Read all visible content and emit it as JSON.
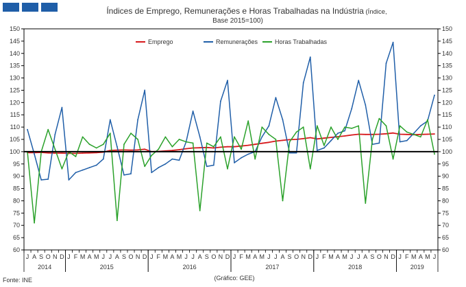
{
  "header": {
    "title_main": "Índices de Emprego,  Remunerações e Horas Trabalhadas na Indústria",
    "title_small": " (Índice,",
    "title_line2": "Base 2015=100)"
  },
  "footer": {
    "source": "Fonte: INE",
    "credit": "(Gráfico: GEE)"
  },
  "colors": {
    "emprego": "#d7191c",
    "remuneracoes": "#1f5ea8",
    "horas": "#2aa12a",
    "baseline": "#000000",
    "logo": "#1f5ea8"
  },
  "chart_data": {
    "type": "line",
    "ylim": [
      60,
      150
    ],
    "yticks": [
      60,
      65,
      70,
      75,
      80,
      85,
      90,
      95,
      100,
      105,
      110,
      115,
      120,
      125,
      130,
      135,
      140,
      145,
      150
    ],
    "reference_line": 100,
    "grid": false,
    "legend": "top-center",
    "month_labels": [
      "J",
      "A",
      "S",
      "O",
      "N",
      "D",
      "J",
      "F",
      "M",
      "A",
      "M",
      "J",
      "J",
      "A",
      "S",
      "O",
      "N",
      "D",
      "J",
      "F",
      "M",
      "A",
      "M",
      "J",
      "J",
      "A",
      "S",
      "O",
      "N",
      "D",
      "J",
      "F",
      "M",
      "A",
      "M",
      "J",
      "J",
      "A",
      "S",
      "O",
      "N",
      "D",
      "J",
      "F",
      "M",
      "A",
      "M",
      "J",
      "J",
      "A",
      "S",
      "O",
      "N",
      "D",
      "J",
      "F",
      "M",
      "A",
      "M",
      "J"
    ],
    "years": [
      {
        "label": "2014",
        "start": 0,
        "count": 6
      },
      {
        "label": "2015",
        "start": 6,
        "count": 12
      },
      {
        "label": "2016",
        "start": 18,
        "count": 12
      },
      {
        "label": "2017",
        "start": 30,
        "count": 12
      },
      {
        "label": "2018",
        "start": 42,
        "count": 12
      },
      {
        "label": "2019",
        "start": 54,
        "count": 6
      }
    ],
    "series": [
      {
        "name": "Emprego",
        "key": "emprego",
        "values": [
          99.6,
          99.6,
          99.7,
          99.5,
          99.4,
          99.4,
          99.3,
          99.3,
          99.4,
          99.5,
          99.6,
          99.8,
          100.5,
          100.6,
          100.7,
          100.6,
          100.7,
          101.0,
          100.0,
          100.1,
          100.3,
          100.5,
          100.8,
          101.2,
          101.5,
          101.6,
          101.7,
          101.5,
          101.8,
          102.0,
          102.0,
          102.3,
          102.6,
          103.0,
          103.4,
          103.8,
          104.3,
          104.6,
          104.9,
          105.0,
          105.3,
          105.7,
          105.2,
          105.5,
          105.8,
          106.1,
          106.4,
          106.8,
          107.1,
          107.0,
          107.0,
          107.1,
          107.3,
          107.6,
          107.1,
          107.0,
          106.9,
          107.0,
          107.1,
          107.2
        ]
      },
      {
        "name": "Remunerações",
        "key": "remuneracoes",
        "values": [
          109,
          99,
          88.5,
          88.8,
          107,
          118,
          88.5,
          91.5,
          92.5,
          93.5,
          94.5,
          97,
          113,
          102,
          90.5,
          91,
          113,
          125,
          91.5,
          93.5,
          95,
          97,
          96.5,
          104,
          116.5,
          106,
          94,
          94.5,
          120.5,
          129,
          95.5,
          97.5,
          99,
          100,
          106,
          110.5,
          122,
          113,
          99.5,
          99.5,
          128,
          138.5,
          100.5,
          101.5,
          104.5,
          107.5,
          108.5,
          117.5,
          129,
          119,
          103,
          103.5,
          136,
          144.5,
          104,
          104.5,
          107.5,
          110.5,
          112.5,
          123
        ]
      },
      {
        "name": "Horas Trabalhadas",
        "key": "horas",
        "values": [
          100,
          71,
          100,
          109,
          101,
          93,
          100,
          98,
          106,
          103,
          101.5,
          103,
          107.5,
          72,
          103,
          107.5,
          105,
          94,
          98.5,
          101,
          106,
          102,
          105,
          104,
          103.5,
          76,
          103.5,
          102,
          106,
          93,
          106,
          101,
          112.5,
          97,
          110,
          107,
          105,
          80,
          104,
          108,
          110,
          93,
          110.5,
          102.5,
          110,
          105,
          110,
          109.5,
          110.5,
          79,
          105,
          113.5,
          110.5,
          97,
          110.5,
          108,
          107,
          106,
          113,
          99
        ]
      }
    ]
  }
}
